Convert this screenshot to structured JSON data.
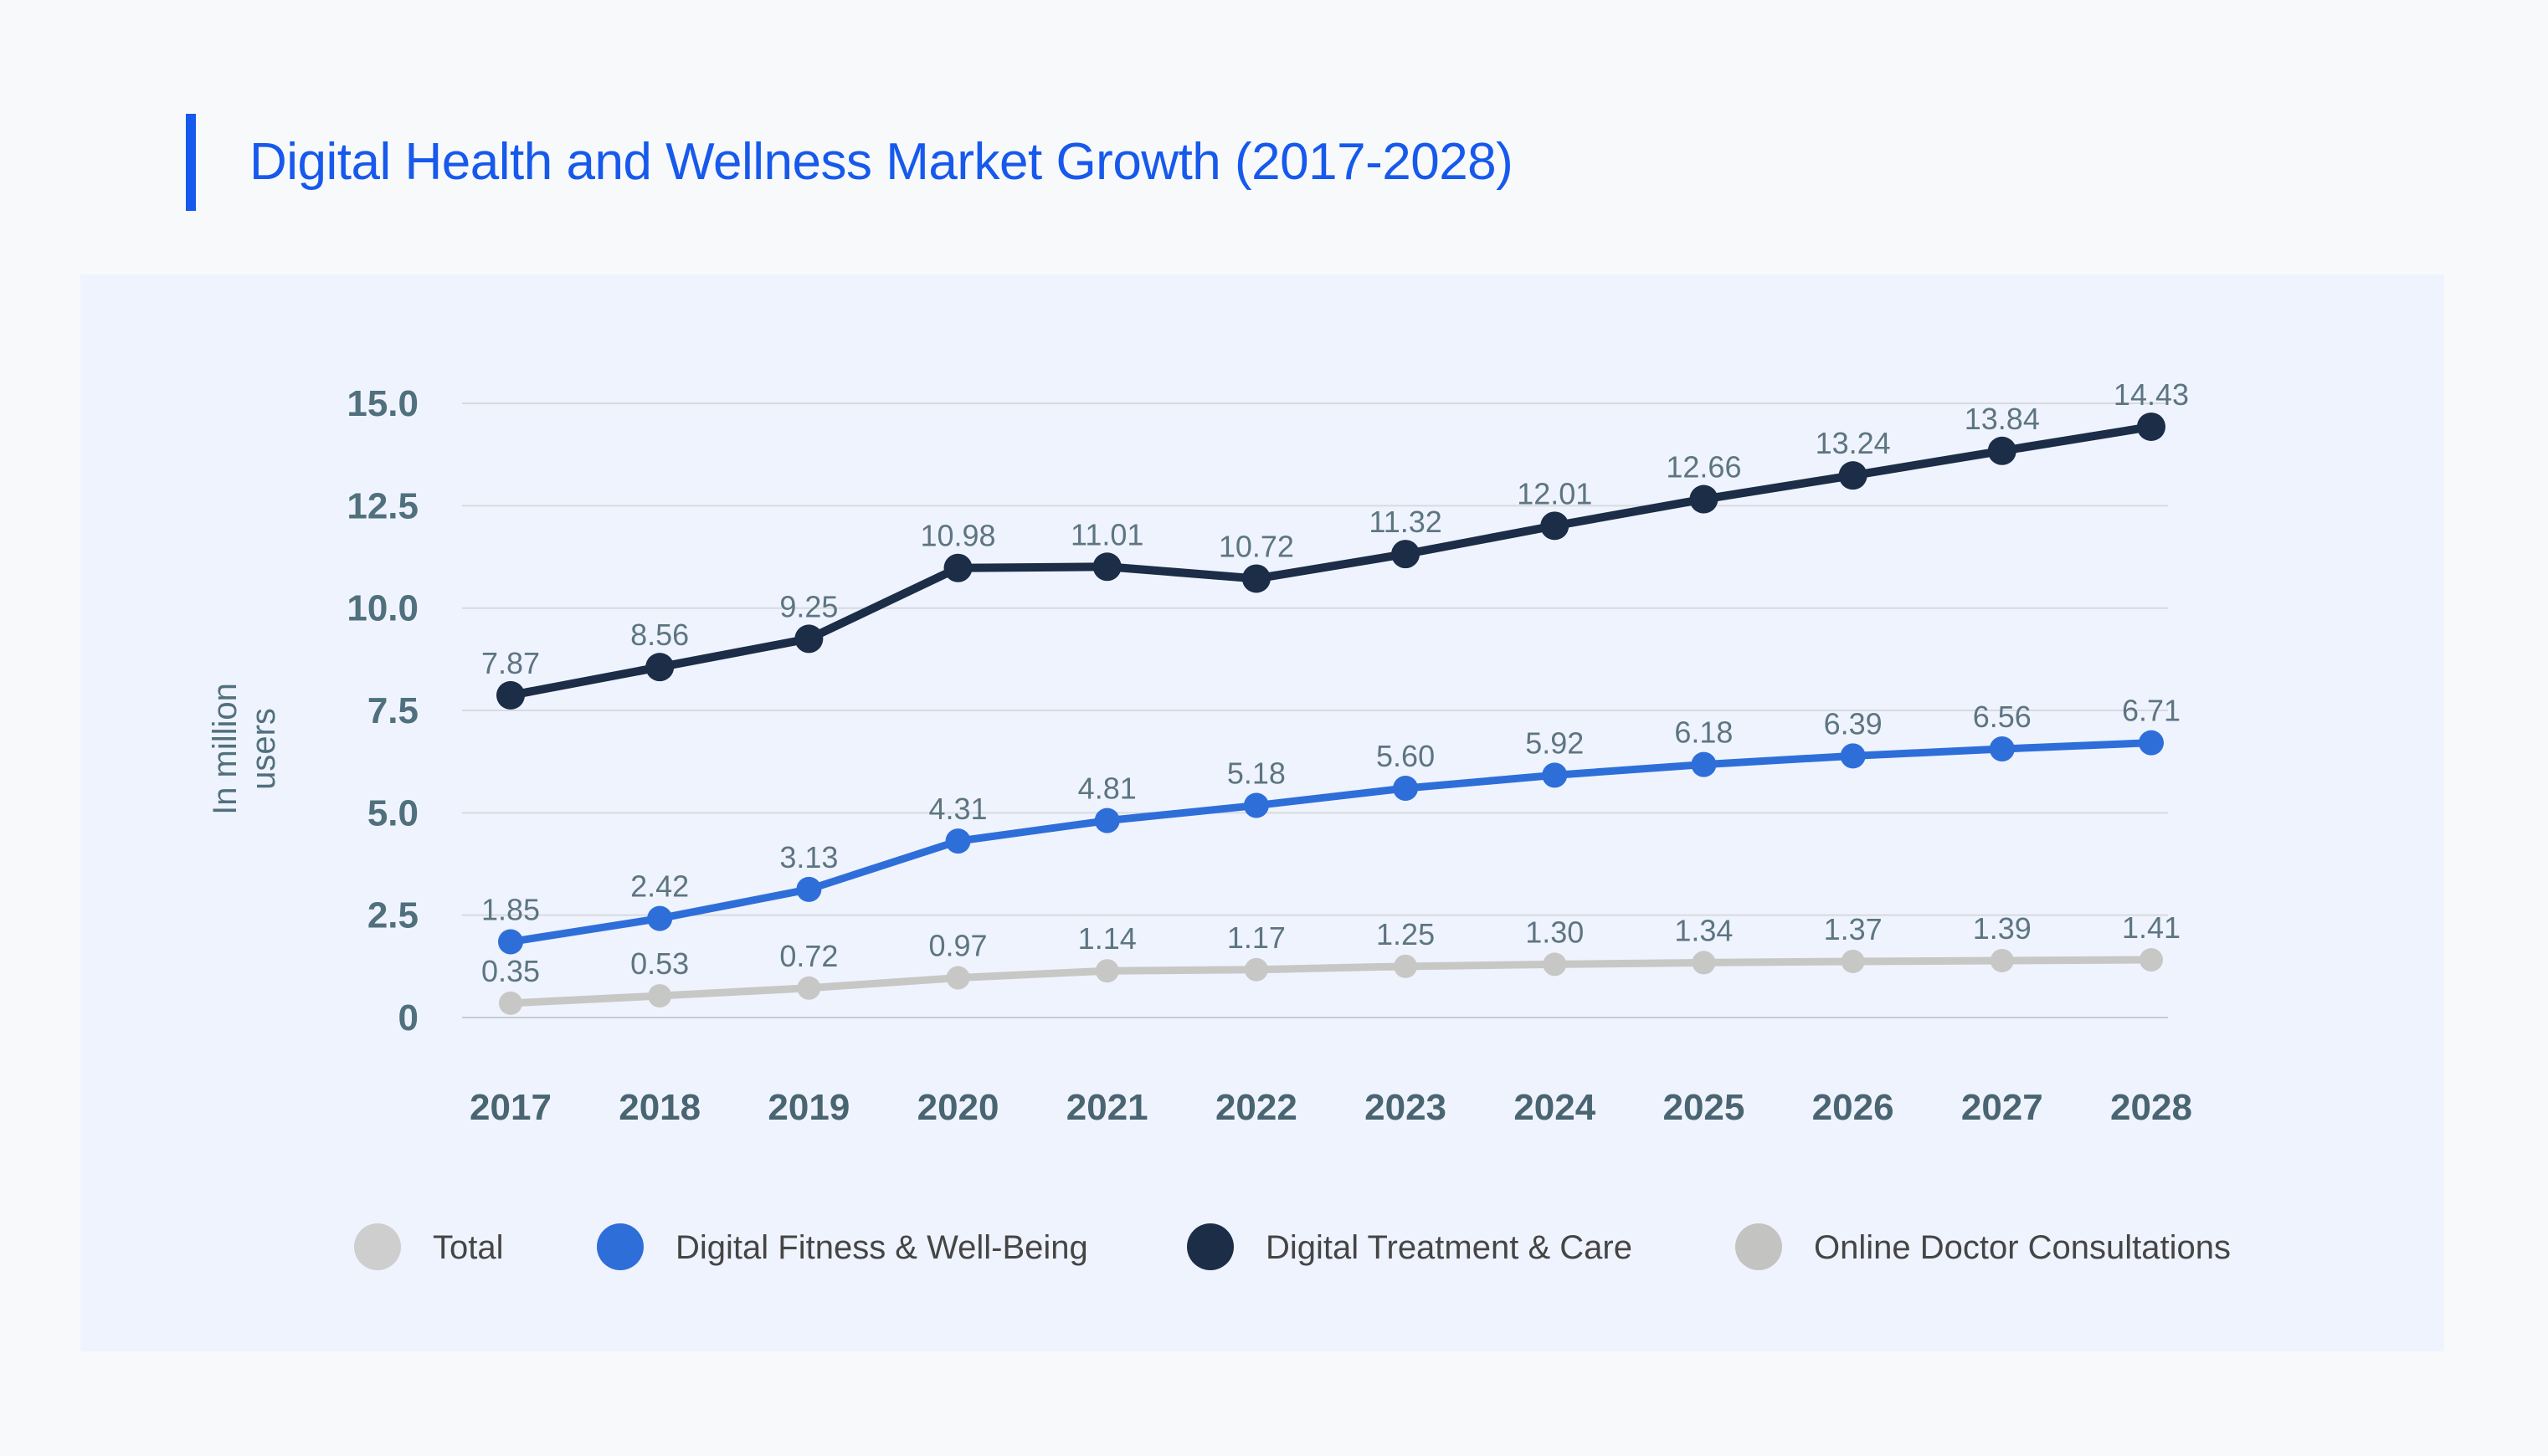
{
  "page": {
    "background": "#f8f9fa",
    "panel_background": "#eff3fd"
  },
  "header": {
    "title": "Digital Health and Wellness Market Growth (2017-2028)",
    "accent_color": "#1659ec"
  },
  "chart_data": {
    "type": "line",
    "title": "Digital Health and Wellness Market Growth (2017-2028)",
    "xlabel": "",
    "ylabel": "In million users",
    "ylabel_lines": [
      "In million",
      "users"
    ],
    "categories": [
      "2017",
      "2018",
      "2019",
      "2020",
      "2021",
      "2022",
      "2023",
      "2024",
      "2025",
      "2026",
      "2027",
      "2028"
    ],
    "series": [
      {
        "name": "Digital Treatment & Care",
        "color": "#1b2d47",
        "marker_radius": 17,
        "stroke_width": 10,
        "values": [
          7.87,
          8.56,
          9.25,
          10.98,
          11.01,
          10.72,
          11.32,
          12.01,
          12.66,
          13.24,
          13.84,
          14.43
        ],
        "labels": [
          "7.87",
          "8.56",
          "9.25",
          "10.98",
          "11.01",
          "10.72",
          "11.32",
          "12.01",
          "12.66",
          "13.24",
          "13.84",
          "14.43"
        ]
      },
      {
        "name": "Digital Fitness & Well-Being",
        "color": "#2e6ed9",
        "marker_radius": 15,
        "stroke_width": 9,
        "values": [
          1.85,
          2.42,
          3.13,
          4.31,
          4.81,
          5.18,
          5.6,
          5.92,
          6.18,
          6.39,
          6.56,
          6.71
        ],
        "labels": [
          "1.85",
          "2.42",
          "3.13",
          "4.31",
          "4.81",
          "5.18",
          "5.60",
          "5.92",
          "6.18",
          "6.39",
          "6.56",
          "6.71"
        ]
      },
      {
        "name": "Online Doctor Consultations",
        "color": "#c7c7c5",
        "marker_radius": 14,
        "stroke_width": 9,
        "values": [
          0.35,
          0.53,
          0.72,
          0.97,
          1.14,
          1.17,
          1.25,
          1.3,
          1.34,
          1.37,
          1.39,
          1.41
        ],
        "labels": [
          "0.35",
          "0.53",
          "0.72",
          "0.97",
          "1.14",
          "1.17",
          "1.25",
          "1.30",
          "1.34",
          "1.37",
          "1.39",
          "1.41"
        ]
      }
    ],
    "legend": [
      {
        "label": "Total",
        "color": "#cecece"
      },
      {
        "label": "Digital Fitness & Well-Being",
        "color": "#2e6ed9"
      },
      {
        "label": "Digital Treatment & Care",
        "color": "#1b2d47"
      },
      {
        "label": "Online Doctor Consultations",
        "color": "#c3c3c1"
      }
    ],
    "legend_position": "bottom",
    "y_ticks": [
      0,
      2.5,
      5,
      7.5,
      10,
      12.5,
      15
    ],
    "y_tick_labels": [
      "0",
      "2.5",
      "5.0",
      "7.5",
      "10.0",
      "12.5",
      "15.0"
    ],
    "ylim": [
      0,
      15
    ],
    "grid": true
  }
}
